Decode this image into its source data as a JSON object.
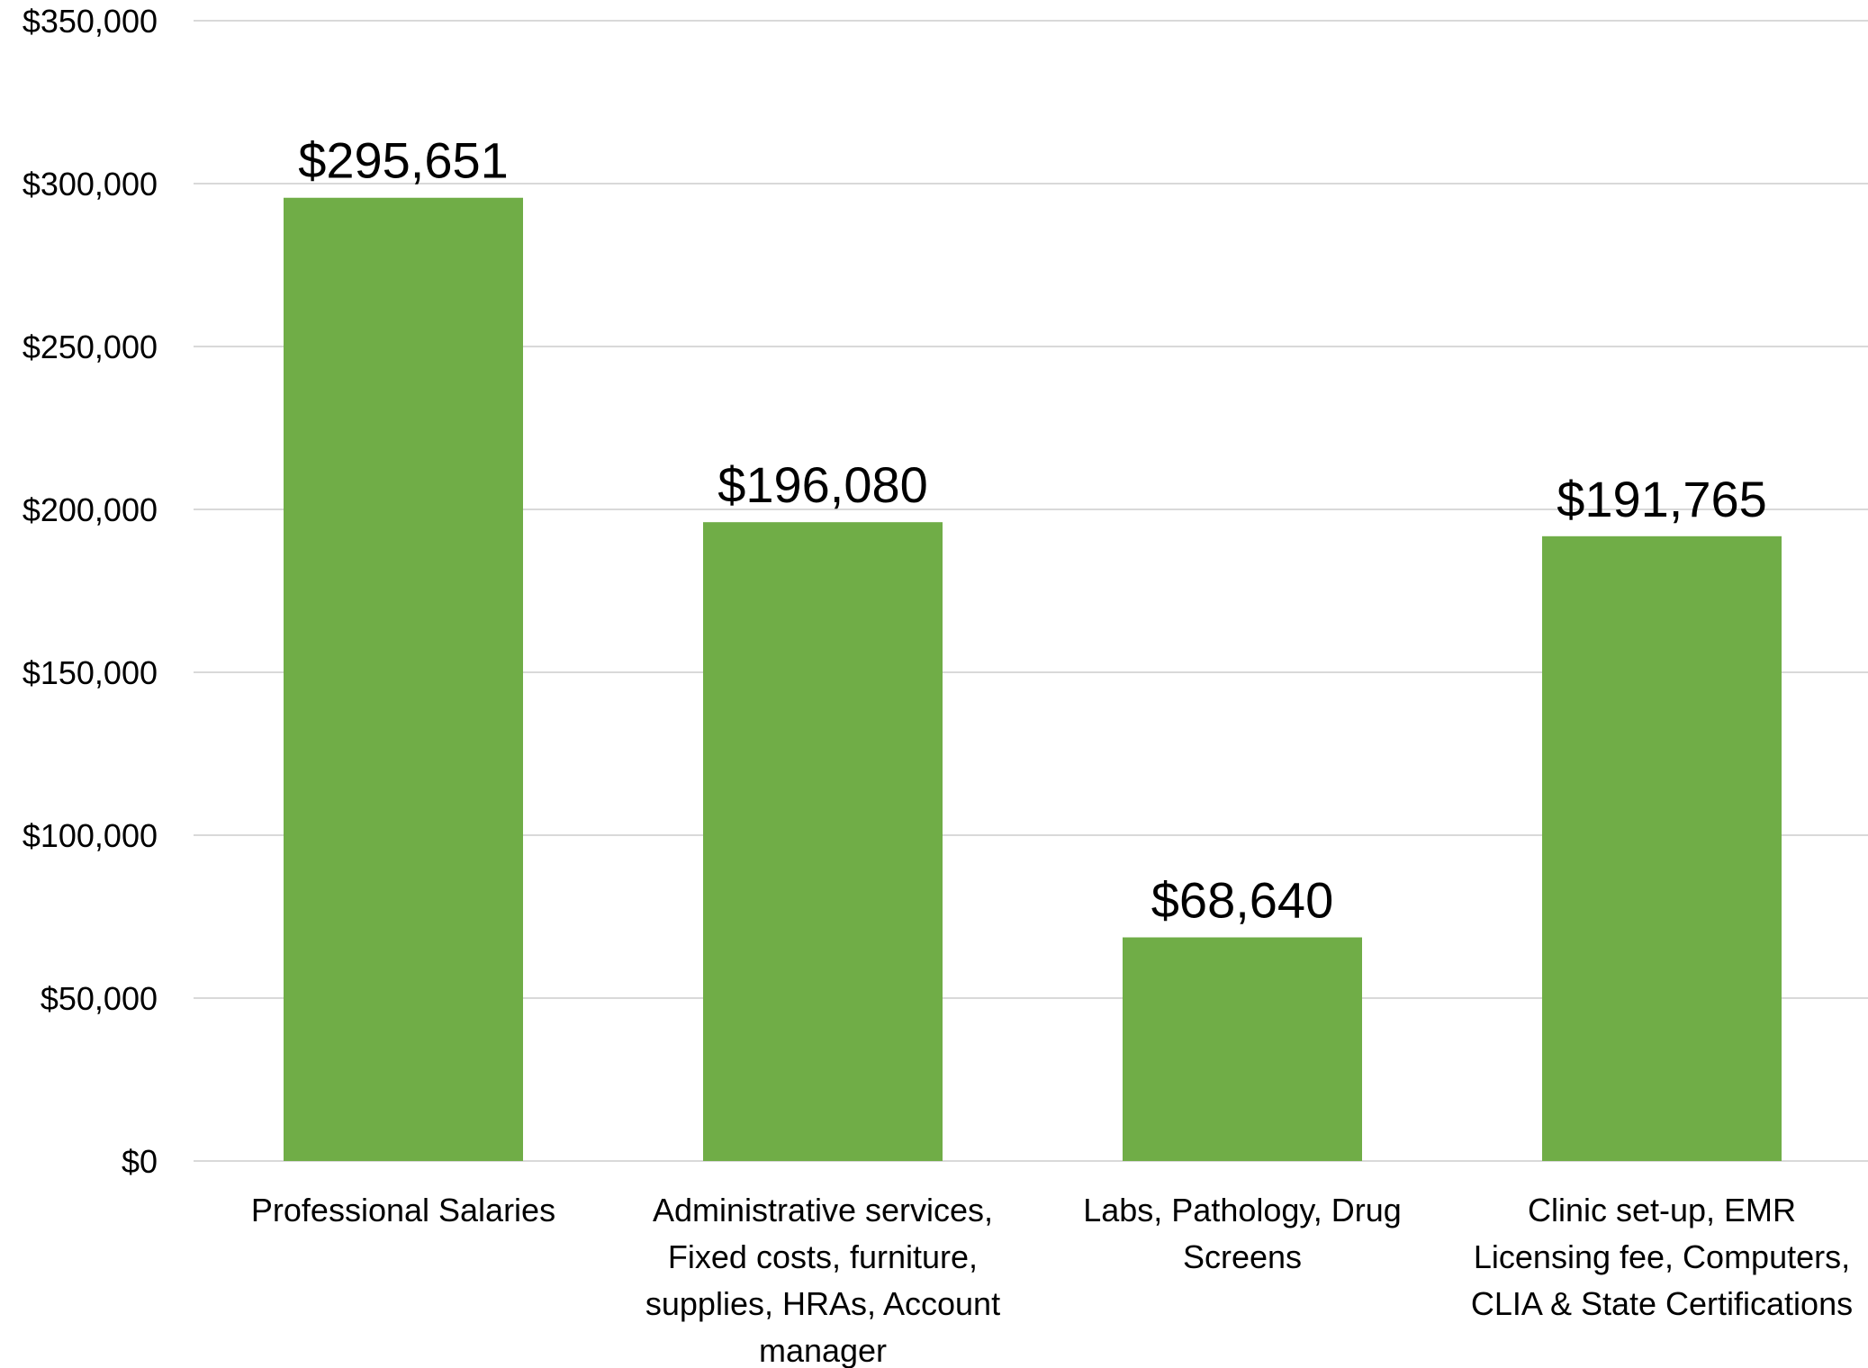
{
  "chart_data": {
    "type": "bar",
    "categories": [
      [
        "Professional Salaries"
      ],
      [
        "Administrative services,",
        "Fixed costs, furniture,",
        "supplies, HRAs, Account",
        "manager"
      ],
      [
        "Labs, Pathology, Drug",
        "Screens"
      ],
      [
        "Clinic set-up, EMR",
        "Licensing fee, Computers,",
        "CLIA & State Certifications"
      ]
    ],
    "values": [
      295651,
      196080,
      68640,
      191765
    ],
    "data_labels": [
      "$295,651",
      "$196,080",
      "$68,640",
      "$191,765"
    ],
    "y_ticks": [
      {
        "value": 0,
        "label": "$0"
      },
      {
        "value": 50000,
        "label": "$50,000"
      },
      {
        "value": 100000,
        "label": "$100,000"
      },
      {
        "value": 150000,
        "label": "$150,000"
      },
      {
        "value": 200000,
        "label": "$200,000"
      },
      {
        "value": 250000,
        "label": "$250,000"
      },
      {
        "value": 300000,
        "label": "$300,000"
      },
      {
        "value": 350000,
        "label": "$350,000"
      }
    ],
    "ylim": [
      0,
      350000
    ],
    "grid": true,
    "legend": "none",
    "colors": {
      "bar": "#70ad47",
      "grid": "#d9d9d9",
      "text": "#000000"
    }
  }
}
